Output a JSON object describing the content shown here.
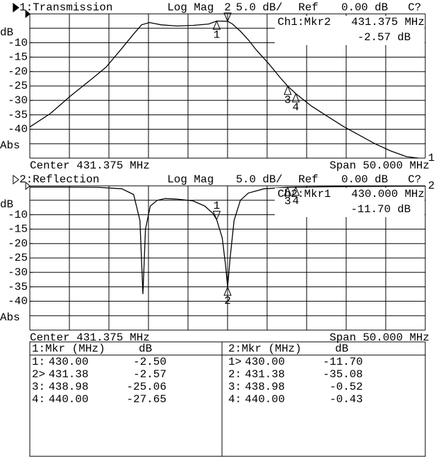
{
  "chart_data": [
    {
      "type": "line",
      "title": "1:Transmission",
      "format": "Log Mag",
      "scale": "5.0 dB/",
      "ref_label": "Ref",
      "ref_value": "0.00 dB",
      "status": "C?",
      "y_unit": "dB",
      "y_format": "Abs",
      "center": "Center 431.375 MHz",
      "span": "Span 50.000 MHz",
      "ref_marker": "1",
      "xlim": [
        406.375,
        456.375
      ],
      "ylim": [
        -50,
        0
      ],
      "yticks": [
        -10,
        -15,
        -20,
        -25,
        -30,
        -35,
        -40
      ],
      "color": "#000000",
      "x": [
        406.375,
        409,
        411.375,
        414,
        416,
        418,
        419.5,
        420.5,
        421.5,
        423,
        425,
        427,
        429,
        430,
        431.38,
        432,
        433,
        434,
        435,
        436.5,
        438,
        438.98,
        440,
        442,
        444,
        446,
        448,
        450,
        452,
        454,
        455.5
      ],
      "values": [
        -39.2,
        -34.5,
        -28.8,
        -23,
        -18.5,
        -12,
        -7,
        -3.8,
        -3.0,
        -3.8,
        -4.2,
        -4.0,
        -3.5,
        -2.5,
        -2.57,
        -3.5,
        -6,
        -9,
        -12.5,
        -17,
        -22,
        -25.06,
        -27.65,
        -32,
        -35.5,
        -39,
        -42,
        -45,
        -47.5,
        -49.5,
        -50
      ],
      "markers": [
        {
          "label": "1",
          "x": 430.0,
          "y": -2.5
        },
        {
          "label": "2",
          "x": 431.38,
          "y": -2.57,
          "active": true
        },
        {
          "label": "3",
          "x": 438.98,
          "y": -25.06
        },
        {
          "label": "4",
          "x": 440.0,
          "y": -27.65
        }
      ],
      "readout": {
        "title": "Ch1:Mkr2",
        "freq": "431.375 MHz",
        "value": "-2.57 dB"
      }
    },
    {
      "type": "line",
      "title": "2:Reflection",
      "format": "Log Mag",
      "scale": "5.0 dB/",
      "ref_label": "Ref",
      "ref_value": "0.00 dB",
      "status": "C?",
      "y_unit": "dB",
      "y_format": "Abs",
      "center": "Center 431.375 MHz",
      "span": "Span 50.000 MHz",
      "ref_marker": "2",
      "xlim": [
        406.375,
        456.375
      ],
      "ylim": [
        -50,
        0
      ],
      "yticks": [
        -10,
        -15,
        -20,
        -25,
        -30,
        -35,
        -40
      ],
      "color": "#000000",
      "x": [
        406.375,
        410,
        415,
        418,
        419.5,
        420.3,
        420.67,
        421.0,
        421.6,
        422.5,
        423.5,
        425,
        427,
        428.5,
        429.5,
        430.0,
        430.7,
        431.1,
        431.38,
        431.7,
        432.2,
        433,
        434,
        436,
        438.98,
        440,
        445,
        450,
        456.375
      ],
      "values": [
        -0.4,
        -0.4,
        -0.5,
        -1.0,
        -3,
        -12,
        -37.5,
        -15,
        -7,
        -5,
        -4.4,
        -4.6,
        -5.2,
        -7,
        -9.5,
        -11.7,
        -18,
        -27,
        -35.08,
        -25,
        -12,
        -5,
        -2.5,
        -1.0,
        -0.52,
        -0.43,
        -0.3,
        -0.2,
        -0.1
      ],
      "markers": [
        {
          "label": "1",
          "x": 430.0,
          "y": -11.7,
          "active": true
        },
        {
          "label": "2",
          "x": 431.38,
          "y": -35.08
        },
        {
          "label": "3",
          "x": 438.98,
          "y": -0.52
        },
        {
          "label": "4",
          "x": 440.0,
          "y": -0.43
        }
      ],
      "readout": {
        "title": "Ch2:Mkr1",
        "freq": "430.000 MHz",
        "value": "-11.70 dB"
      }
    }
  ],
  "marker_table": [
    {
      "header": [
        "1:Mkr (MHz)",
        "dB"
      ],
      "rows": [
        [
          "1:",
          "430.00",
          "-2.50"
        ],
        [
          "2>",
          "431.38",
          "-2.57"
        ],
        [
          "3:",
          "438.98",
          "-25.06"
        ],
        [
          "4:",
          "440.00",
          "-27.65"
        ]
      ]
    },
    {
      "header": [
        "2:Mkr (MHz)",
        "dB"
      ],
      "rows": [
        [
          "1>",
          "430.00",
          "-11.70"
        ],
        [
          "2:",
          "431.38",
          "-35.08"
        ],
        [
          "3:",
          "438.98",
          "-0.52"
        ],
        [
          "4:",
          "440.00",
          "-0.43"
        ]
      ]
    }
  ]
}
